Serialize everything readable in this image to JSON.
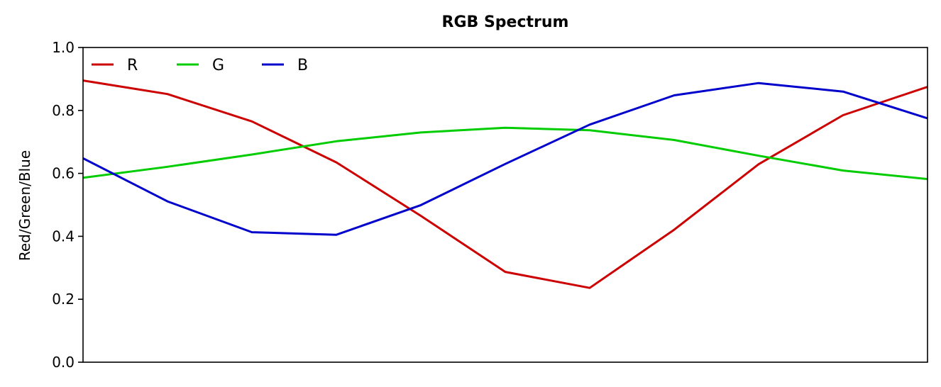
{
  "chart_data": {
    "type": "line",
    "title": "RGB Spectrum",
    "xlabel": "",
    "ylabel": "Red/Green/Blue",
    "ylim": [
      0,
      1
    ],
    "xlim": [
      0,
      10
    ],
    "yticks": [
      "0.0",
      "0.2",
      "0.4",
      "0.6",
      "0.8",
      "1.0"
    ],
    "ytick_values": [
      0,
      0.2,
      0.4,
      0.6,
      0.8,
      1.0
    ],
    "legend_position": "top-left",
    "grid": false,
    "x": [
      0,
      1,
      2,
      3,
      4,
      5,
      6,
      7,
      8,
      9,
      10
    ],
    "series": [
      {
        "name": "R",
        "color": "#cc0000",
        "values": [
          0.895,
          0.852,
          0.765,
          0.635,
          0.465,
          0.287,
          0.236,
          0.421,
          0.629,
          0.785,
          0.875
        ]
      },
      {
        "name": "G",
        "color": "#00cc00",
        "values": [
          0.586,
          0.621,
          0.66,
          0.702,
          0.73,
          0.745,
          0.737,
          0.706,
          0.656,
          0.609,
          0.582
        ]
      },
      {
        "name": "B",
        "color": "#0000cc",
        "values": [
          0.648,
          0.511,
          0.413,
          0.405,
          0.499,
          0.63,
          0.755,
          0.848,
          0.887,
          0.86,
          0.775
        ]
      }
    ]
  }
}
